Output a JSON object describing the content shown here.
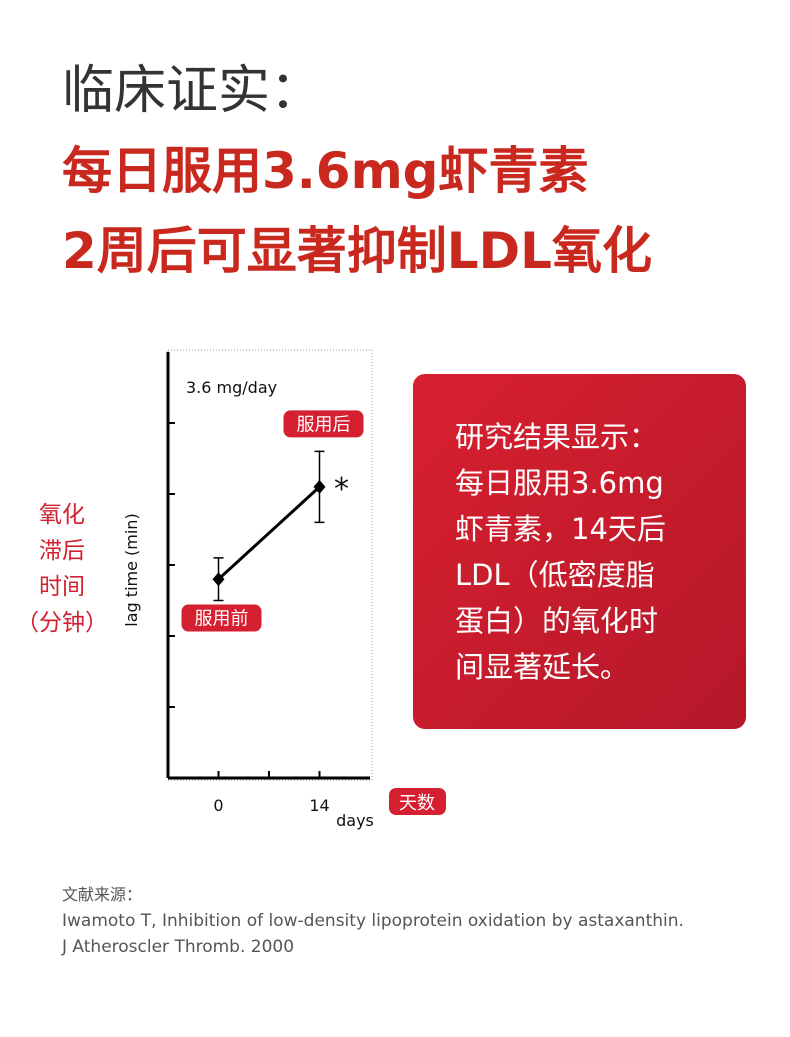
{
  "header": {
    "title_lines": [
      "临床证实：",
      "每日服用3.6mg虾青素",
      "2周后可显著抑制LDL氧化"
    ]
  },
  "chart_data": {
    "type": "line",
    "annotation": "3.6 mg/day",
    "xlabel": "days",
    "ylabel": "lag time (min)",
    "y_side_label": [
      "氧化",
      "滞后",
      "时间",
      "（分钟）"
    ],
    "x_side_label": "天数",
    "x": [
      0,
      14
    ],
    "series": [
      {
        "values": [
          2.8,
          4.1
        ],
        "errors": [
          0.3,
          0.5
        ],
        "color": "#000000",
        "point_labels": [
          "服用前",
          "服用后"
        ]
      }
    ],
    "significance": "*",
    "xlim": [
      -7,
      21
    ],
    "xticks": [
      {
        "value": 0,
        "label": "0"
      },
      {
        "value": 7,
        "label": null
      },
      {
        "value": 14,
        "label": "14"
      }
    ],
    "ylim": [
      0,
      6
    ],
    "yticks": [
      {
        "value": 1,
        "label": null
      },
      {
        "value": 2,
        "label": null
      },
      {
        "value": 3,
        "label": null
      },
      {
        "value": 4,
        "label": null
      },
      {
        "value": 5,
        "label": null
      }
    ],
    "label_color": "#d42030"
  },
  "callout": {
    "lines": [
      "研究结果显示：",
      "每日服用3.6mg",
      "虾青素，14天后",
      "LDL（低密度脂",
      "蛋白）的氧化时",
      "间显著延长。"
    ]
  },
  "reference": {
    "lines": [
      "文献来源：",
      "Iwamoto T, Inhibition of low-density lipoprotein oxidation by astaxanthin.",
      "J Atheroscler Thromb. 2000"
    ]
  }
}
